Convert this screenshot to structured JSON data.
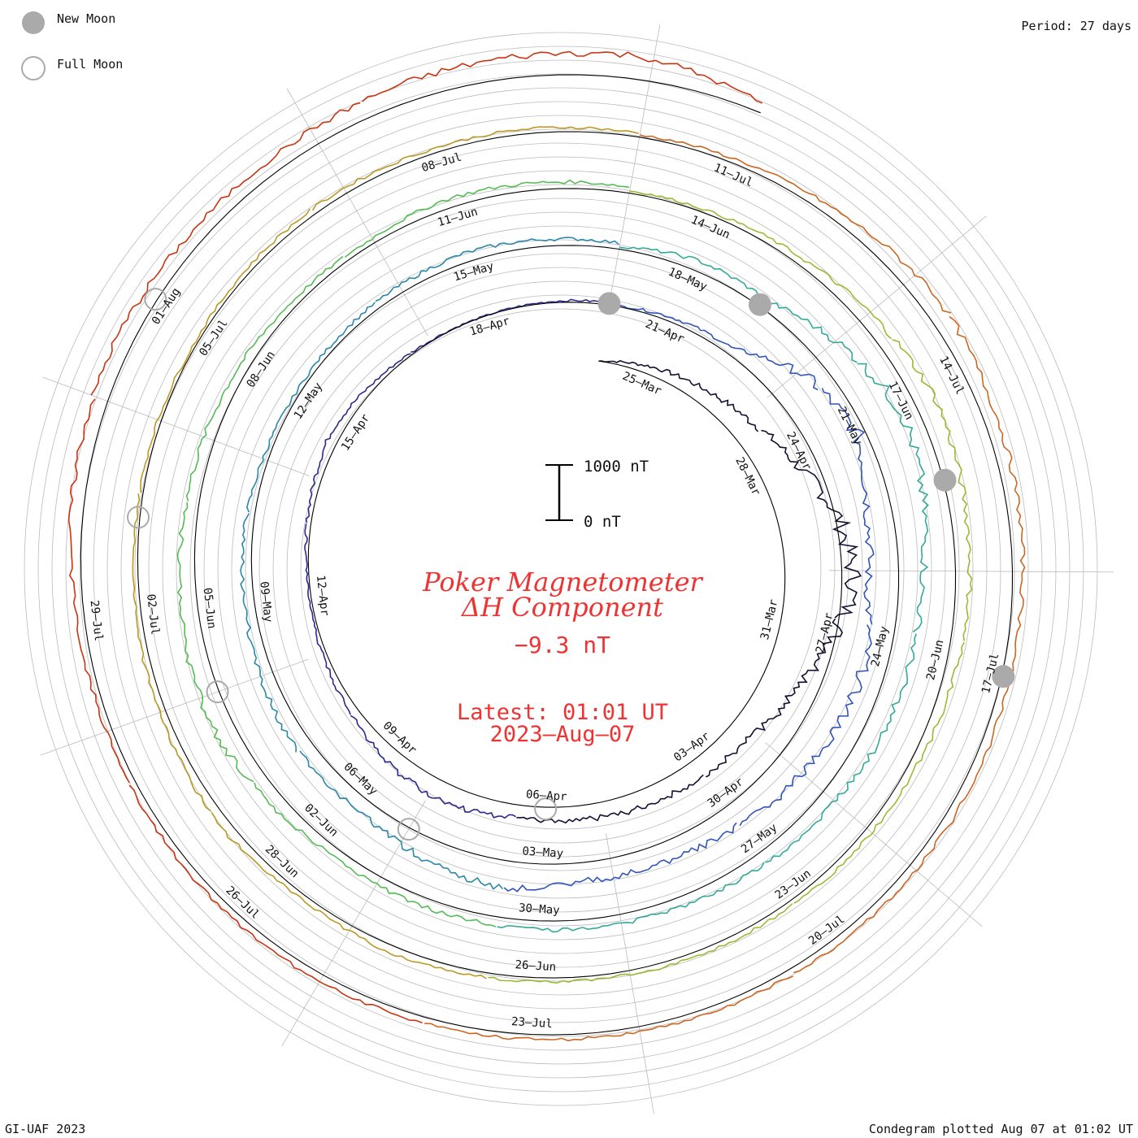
{
  "legend": {
    "new_moon_label": "New Moon",
    "full_moon_label": "Full Moon"
  },
  "period_label": "Period: 27 days",
  "footer": {
    "left": "GI-UAF 2023",
    "right": "Condegram plotted Aug 07 at 01:02 UT"
  },
  "scale_bar": {
    "top_label": "1000 nT",
    "bottom_label": "0 nT"
  },
  "center": {
    "title_line1": "Poker Magnetometer",
    "title_line2": "ΔH Component",
    "current_value": "−9.3 nT",
    "latest_label": "Latest: 01:01 UT",
    "latest_date": "2023–Aug–07"
  },
  "colors": {
    "annotation": "#ee3333",
    "grid": "#bbbbbb",
    "moon_fill": "#aaaaaa",
    "turns": [
      "#111133",
      "#2a2a8c",
      "#3355bb",
      "#2a88aa",
      "#33aa99",
      "#55bb55",
      "#99bb33",
      "#bb9922",
      "#cc6622",
      "#cc3311",
      "#bb2211"
    ]
  },
  "chart_data": {
    "type": "line",
    "title": "Poker Magnetometer ΔH Component",
    "series_name": "ΔH",
    "period_days": 27,
    "unit": "nT",
    "date_labels": [
      {
        "text": "25–Mar"
      },
      {
        "text": "28–Mar"
      },
      {
        "text": "31–Mar"
      },
      {
        "text": "03–Apr"
      },
      {
        "text": "06–Apr"
      },
      {
        "text": "09–Apr"
      },
      {
        "text": "12–Apr"
      },
      {
        "text": "15–Apr"
      },
      {
        "text": "18–Apr"
      },
      {
        "text": "21–Apr"
      },
      {
        "text": "24–Apr"
      },
      {
        "text": "27–Apr"
      },
      {
        "text": "30–Apr"
      },
      {
        "text": "03–May"
      },
      {
        "text": "06–May"
      },
      {
        "text": "09–May"
      },
      {
        "text": "12–May"
      },
      {
        "text": "15–May"
      },
      {
        "text": "18–May"
      },
      {
        "text": "21–May"
      },
      {
        "text": "24–May"
      },
      {
        "text": "27–May"
      },
      {
        "text": "30–May"
      },
      {
        "text": "02–Jun"
      },
      {
        "text": "05–Jun"
      },
      {
        "text": "08–Jun"
      },
      {
        "text": "11–Jun"
      },
      {
        "text": "14–Jun"
      },
      {
        "text": "17–Jun"
      },
      {
        "text": "20–Jun"
      },
      {
        "text": "23–Jun"
      },
      {
        "text": "26–Jun"
      },
      {
        "text": "28–Jun"
      },
      {
        "text": "02–Jul"
      },
      {
        "text": "05–Jul"
      },
      {
        "text": "08–Jul"
      },
      {
        "text": "11–Jul"
      },
      {
        "text": "14–Jul"
      },
      {
        "text": "17–Jul"
      },
      {
        "text": "20–Jul"
      },
      {
        "text": "23–Jul"
      },
      {
        "text": "26–Jul"
      },
      {
        "text": "29–Jul"
      },
      {
        "text": "01–Aug"
      }
    ],
    "new_moons": [
      "2023-04-20",
      "2023-05-19",
      "2023-06-18",
      "2023-07-17"
    ],
    "full_moons": [
      "2023-04-06",
      "2023-05-05",
      "2023-06-04",
      "2023-07-03",
      "2023-08-01"
    ],
    "series": [
      {
        "start": "2023-03-24",
        "end": "2023-04-20",
        "values": [
          0,
          35,
          60,
          95,
          160,
          260,
          300,
          220,
          140,
          90,
          75,
          70,
          60,
          55,
          80,
          70,
          40,
          20,
          10,
          10,
          25,
          45,
          20,
          5,
          0,
          5,
          10
        ]
      },
      {
        "start": "2023-04-20",
        "end": "2023-05-17",
        "values": [
          0,
          20,
          30,
          160,
          210,
          140,
          110,
          150,
          140,
          120,
          90,
          80,
          80,
          120,
          95,
          60,
          70,
          60,
          45,
          40,
          25,
          15,
          20,
          30,
          40,
          30,
          25
        ]
      },
      {
        "start": "2023-05-17",
        "end": "2023-06-13",
        "values": [
          10,
          45,
          40,
          120,
          180,
          140,
          100,
          90,
          80,
          60,
          50,
          40,
          40,
          35,
          40,
          35,
          60,
          90,
          80,
          60,
          50,
          40,
          25,
          20,
          40,
          30,
          25
        ]
      },
      {
        "start": "2023-06-13",
        "end": "2023-07-10",
        "values": [
          10,
          15,
          30,
          60,
          90,
          70,
          60,
          45,
          30,
          25,
          20,
          20,
          15,
          20,
          30,
          20,
          40,
          30,
          25,
          15,
          15,
          10,
          20,
          25,
          20,
          20,
          15
        ]
      },
      {
        "start": "2023-07-10",
        "end": "2023-08-07",
        "values": [
          10,
          20,
          40,
          80,
          60,
          50,
          40,
          35,
          35,
          30,
          25,
          20,
          20,
          25,
          30,
          30,
          25,
          25,
          40,
          60,
          70,
          55,
          60,
          80,
          90,
          100,
          40
        ]
      }
    ]
  }
}
